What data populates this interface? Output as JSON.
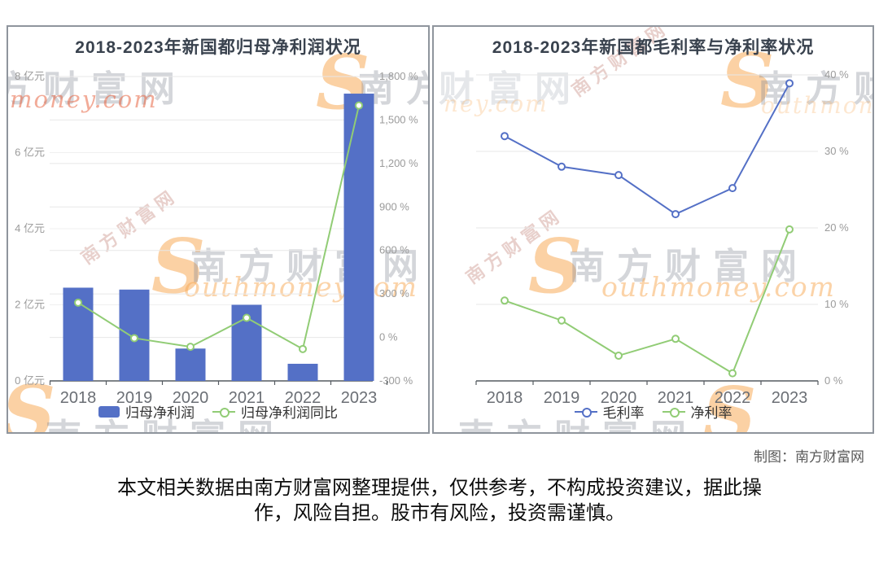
{
  "watermark": {
    "site_cjk": "南方财富网",
    "site_cjk_partial": "方财富网",
    "site_cjk_short": "南方",
    "site_cjk_mid": "财富网",
    "script_full": "outhmoney.com",
    "script_money": "money.com",
    "script_ney": "ney.com",
    "s_glyph": "S"
  },
  "credit": "制图：南方财富网",
  "disclaimer": {
    "line1": "本文相关数据由南方财富网整理提供，仅供参考，不构成投资建议，据此操",
    "line2": "作，风险自担。股市有风险，投资需谨慎。"
  },
  "chart_data": [
    {
      "type": "bar",
      "title": "2018-2023年新国都归母净利润状况",
      "categories": [
        "2018",
        "2019",
        "2020",
        "2021",
        "2022",
        "2023"
      ],
      "series": [
        {
          "name": "归母净利润",
          "type": "bar",
          "axis": "left",
          "unit": "亿元",
          "color": "#5470c6",
          "values": [
            2.45,
            2.4,
            0.85,
            2.0,
            0.45,
            7.55
          ]
        },
        {
          "name": "归母净利润同比",
          "type": "line",
          "axis": "right",
          "unit": "%",
          "color": "#91cc75",
          "values": [
            240,
            -5,
            -65,
            135,
            -80,
            1600
          ]
        }
      ],
      "y_axis_left": {
        "ticks": [
          "8 亿元",
          "6 亿元",
          "4 亿元",
          "2 亿元",
          "0 亿元"
        ],
        "tick_values": [
          8,
          6,
          4,
          2,
          0
        ],
        "min": 0,
        "max": 8
      },
      "y_axis_right": {
        "ticks": [
          "1,800 %",
          "1,500 %",
          "1,200 %",
          "900 %",
          "600 %",
          "300 %",
          "0 %",
          "-300 %"
        ],
        "tick_values": [
          1800,
          1500,
          1200,
          900,
          600,
          300,
          0,
          -300
        ],
        "min": -300,
        "max": 1800
      },
      "grid": true,
      "legend_position": "bottom"
    },
    {
      "type": "line",
      "title": "2018-2023年新国都毛利率与净利率状况",
      "categories": [
        "2018",
        "2019",
        "2020",
        "2021",
        "2022",
        "2023"
      ],
      "series": [
        {
          "name": "毛利率",
          "type": "line",
          "axis": "right",
          "unit": "%",
          "color": "#5470c6",
          "values": [
            32,
            28,
            26.9,
            21.8,
            25.2,
            38.9
          ]
        },
        {
          "name": "净利率",
          "type": "line",
          "axis": "right",
          "unit": "%",
          "color": "#91cc75",
          "values": [
            10.5,
            7.9,
            3.3,
            5.5,
            1.0,
            19.8
          ]
        }
      ],
      "y_axis_right": {
        "ticks": [
          "40 %",
          "30 %",
          "20 %",
          "10 %",
          "0 %"
        ],
        "tick_values": [
          40,
          30,
          20,
          10,
          0
        ],
        "min": 0,
        "max": 40
      },
      "grid": true,
      "legend_position": "bottom"
    }
  ]
}
